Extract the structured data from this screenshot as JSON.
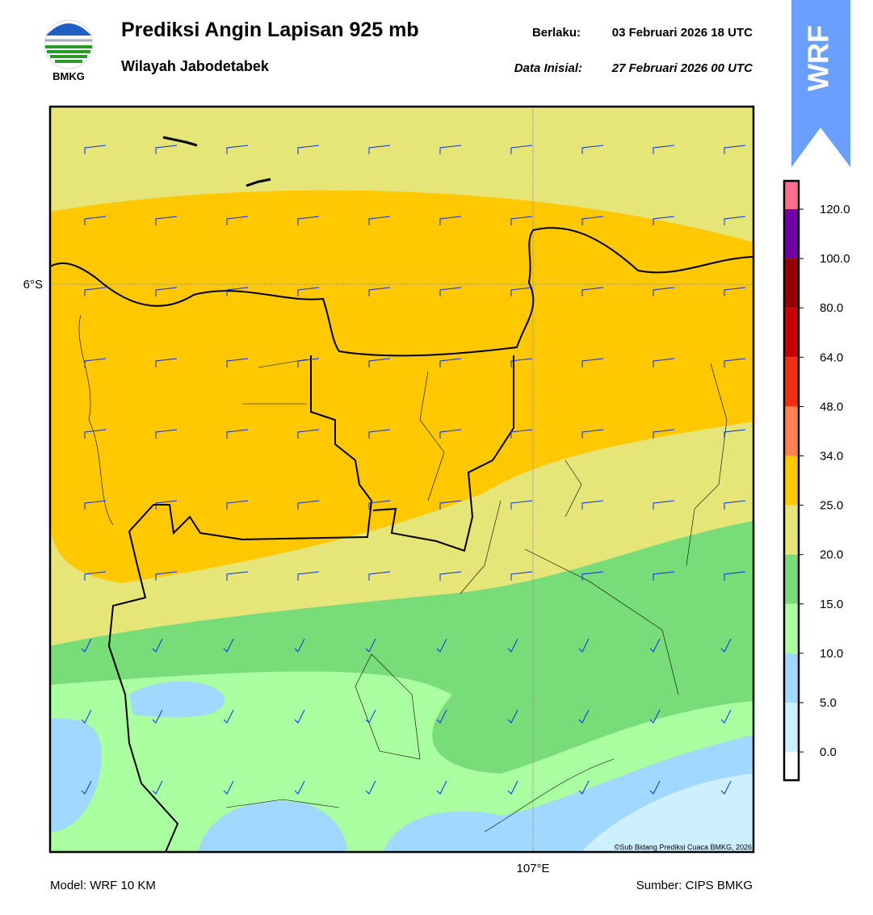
{
  "header": {
    "logo_text": "BMKG",
    "title": "Prediksi Angin Lapisan 925 mb",
    "subtitle": "Wilayah Jabodetabek",
    "valid_label": "Berlaku:",
    "valid_time": "03 Februari 2026 18 UTC",
    "init_label": "Data Inisial:",
    "init_time": "27 Februari 2026 00 UTC",
    "badge": "WRF"
  },
  "map": {
    "lat_label": "6°S",
    "lon_label": "107°E",
    "copyright": "©Sub Bidang Prediksi Cuaca BMKG, 2026"
  },
  "colorbar": {
    "labels": [
      "120.0",
      "100.0",
      "80.0",
      "64.0",
      "48.0",
      "34.0",
      "25.0",
      "20.0",
      "15.0",
      "10.0",
      "5.0",
      "0.0"
    ],
    "colors": [
      "#ff6e8c",
      "#7000a8",
      "#960000",
      "#c80000",
      "#f03010",
      "#ff8050",
      "#ffc800",
      "#e6e678",
      "#78dc78",
      "#aaffa0",
      "#a0d8ff",
      "#ccf0ff",
      "#ffffff"
    ]
  },
  "footer": {
    "model": "Model: WRF 10 KM",
    "source": "Sumber: CIPS BMKG"
  }
}
